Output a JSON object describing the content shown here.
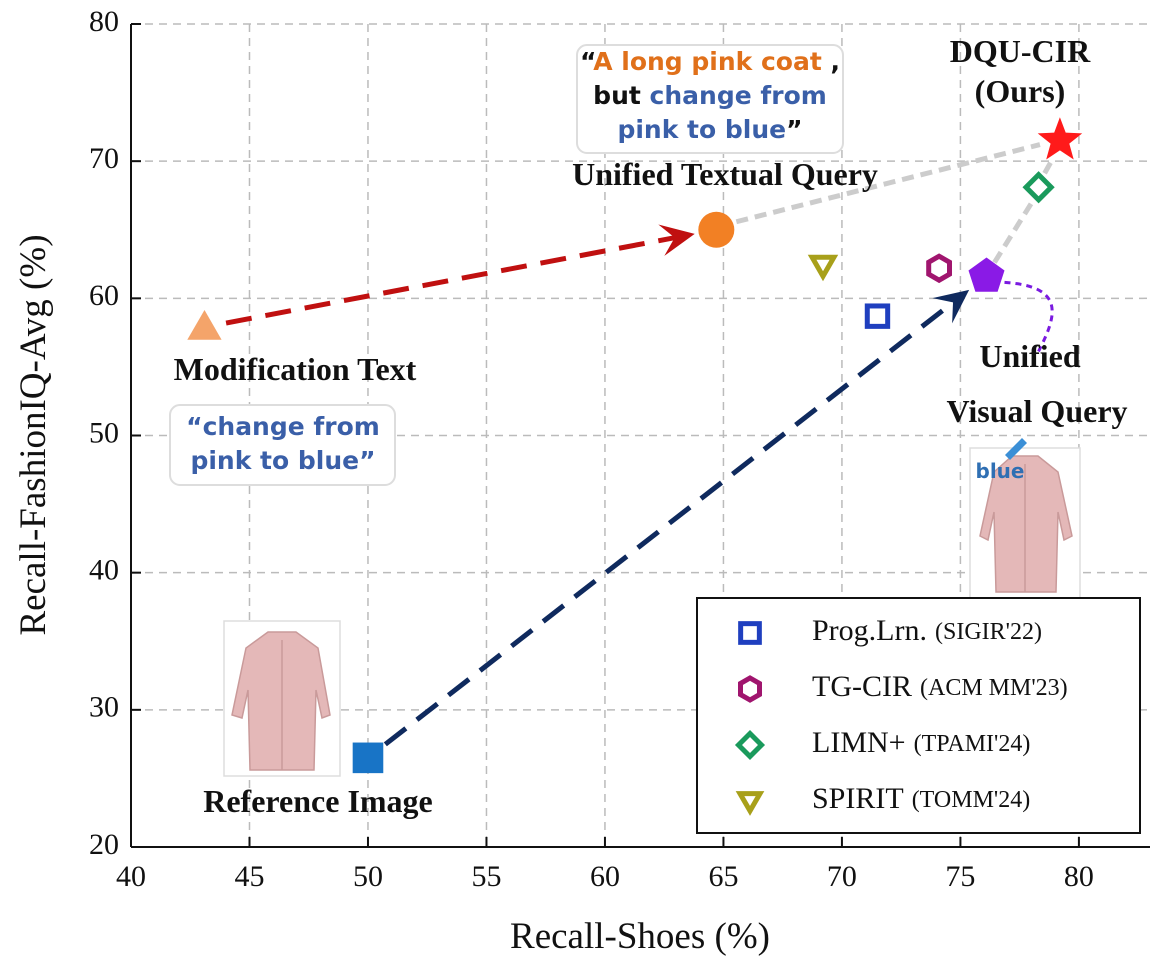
{
  "chart_data": {
    "type": "scatter",
    "xlabel": "Recall-Shoes (%)",
    "ylabel": "Recall-FashionIQ-Avg (%)",
    "xlim": [
      40,
      83
    ],
    "ylim": [
      20,
      80
    ],
    "xticks": [
      40,
      45,
      50,
      55,
      60,
      65,
      70,
      75,
      80
    ],
    "yticks": [
      20,
      30,
      40,
      50,
      60,
      70,
      80
    ],
    "grid": true,
    "series": [
      {
        "name": "Prog.Lrn.",
        "venue": "(SIGIR'22)",
        "color": "#1f3fbf",
        "marker": "square",
        "x": [
          71.5
        ],
        "y": [
          58.7
        ]
      },
      {
        "name": "TG-CIR",
        "venue": "(ACM MM'23)",
        "color": "#a0156e",
        "marker": "hexagon",
        "x": [
          74.1
        ],
        "y": [
          62.2
        ]
      },
      {
        "name": "LIMN+",
        "venue": "(TPAMI'24)",
        "color": "#1a9a5c",
        "marker": "diamond",
        "x": [
          78.3
        ],
        "y": [
          68.1
        ]
      },
      {
        "name": "SPIRIT",
        "venue": "(TOMM'24)",
        "color": "#a8a01a",
        "marker": "triangle-down",
        "x": [
          69.2
        ],
        "y": [
          62.4
        ]
      }
    ],
    "points": [
      {
        "label": [
          "Modification Text"
        ],
        "color": "#f4a46a",
        "marker": "triangle",
        "x": 43.1,
        "y": 57.9
      },
      {
        "label": [
          "Unified Textual Query"
        ],
        "color": "#f28024",
        "marker": "circle",
        "x": 64.7,
        "y": 65.0
      },
      {
        "label": [
          "DQU-CIR",
          "(Ours)"
        ],
        "color": "#ff1a1a",
        "marker": "star",
        "x": 79.2,
        "y": 71.5
      },
      {
        "label": [
          "Unified",
          "Visual Query"
        ],
        "color": "#8a1ae6",
        "marker": "pentagon",
        "x": 76.1,
        "y": 61.6
      },
      {
        "label": [
          "Reference Image"
        ],
        "color": "#1874c6",
        "marker": "square",
        "x": 50.0,
        "y": 26.5
      }
    ]
  },
  "quotes": [
    [
      [
        {
          "text": "“",
          "color": "#111"
        },
        {
          "text": "A long pink coat",
          "color": "#e0701a"
        },
        {
          "text": " ,",
          "color": "#111"
        }
      ],
      [
        {
          "text": "but ",
          "color": "#111"
        },
        {
          "text": "change from",
          "color": "#3a5fa8"
        }
      ],
      [
        {
          "text": "pink to blue",
          "color": "#3a5fa8"
        },
        {
          "text": "”",
          "color": "#111"
        }
      ]
    ],
    [
      [
        {
          "text": "“change from",
          "color": "#3a5fa8"
        }
      ],
      [
        {
          "text": "pink to blue”",
          "color": "#3a5fa8"
        }
      ]
    ]
  ],
  "image_text": "blue"
}
